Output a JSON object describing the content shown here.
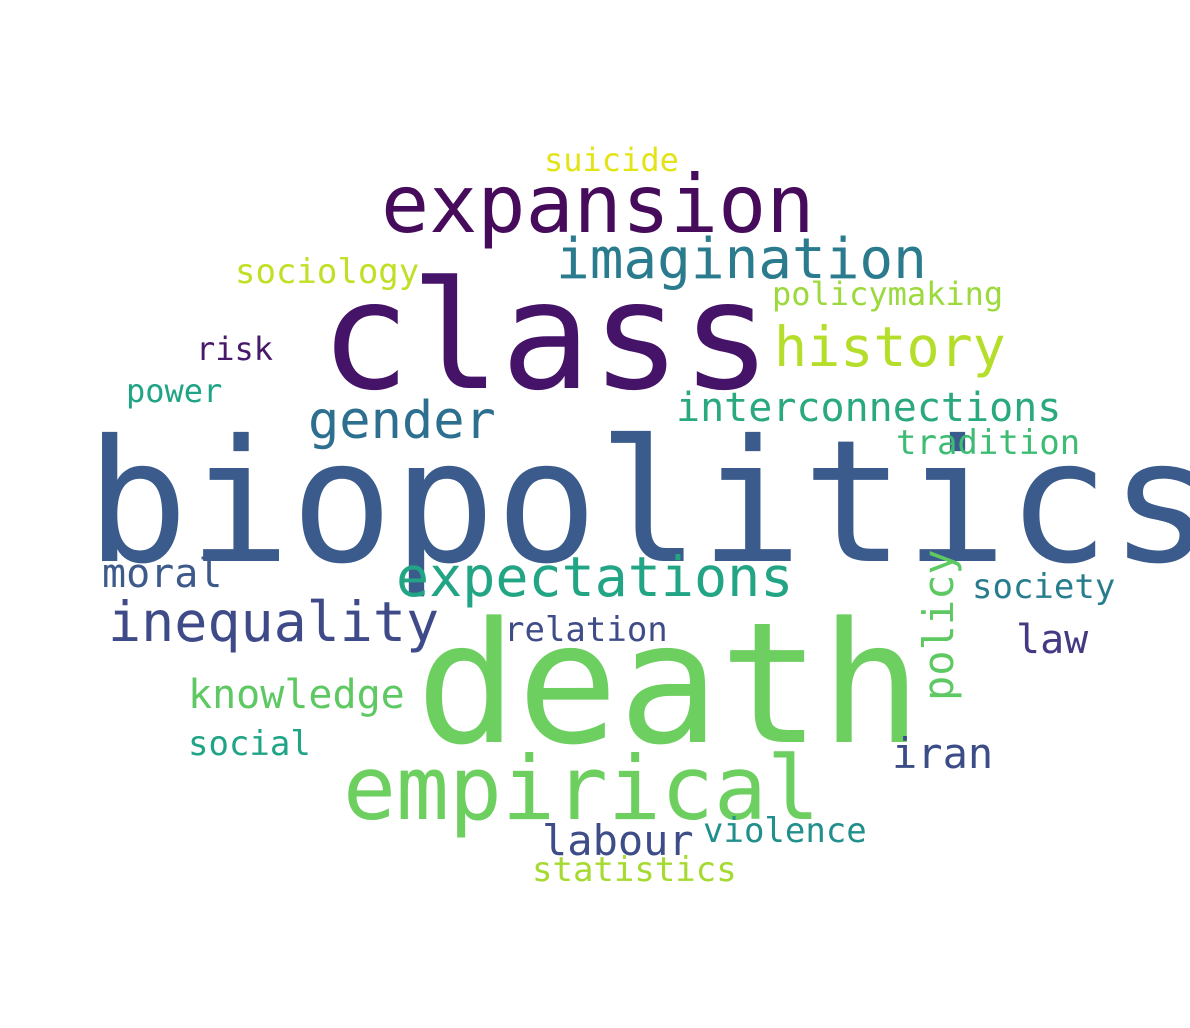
{
  "words": [
    {
      "text": "biopolitics",
      "color": "#3b5b8c"
    },
    {
      "text": "death",
      "color": "#6ccf5f"
    },
    {
      "text": "class",
      "color": "#451468"
    },
    {
      "text": "empirical",
      "color": "#6ccf5f"
    },
    {
      "text": "expansion",
      "color": "#460b5b"
    },
    {
      "text": "imagination",
      "color": "#2a7b8e"
    },
    {
      "text": "expectations",
      "color": "#22a584"
    },
    {
      "text": "inequality",
      "color": "#3f4a89"
    },
    {
      "text": "history",
      "color": "#b5de2b"
    },
    {
      "text": "gender",
      "color": "#2c6f8e"
    },
    {
      "text": "interconnections",
      "color": "#2aa880"
    },
    {
      "text": "policy",
      "color": "#5ec962"
    },
    {
      "text": "knowledge",
      "color": "#5ec962"
    },
    {
      "text": "iran",
      "color": "#3b4c86"
    },
    {
      "text": "labour",
      "color": "#3e4c87"
    },
    {
      "text": "moral",
      "color": "#3d5a8a"
    },
    {
      "text": "law",
      "color": "#443a83"
    },
    {
      "text": "relation",
      "color": "#3f4c88"
    },
    {
      "text": "violence",
      "color": "#218f8c"
    },
    {
      "text": "statistics",
      "color": "#a5da31"
    },
    {
      "text": "social",
      "color": "#20a486"
    },
    {
      "text": "society",
      "color": "#277d8e"
    },
    {
      "text": "tradition",
      "color": "#3fbc73"
    },
    {
      "text": "policymaking",
      "color": "#9bd93c"
    },
    {
      "text": "sociology",
      "color": "#c0df25"
    },
    {
      "text": "suicide",
      "color": "#e2e418"
    },
    {
      "text": "risk",
      "color": "#48186a"
    },
    {
      "text": "power",
      "color": "#20a486"
    }
  ]
}
